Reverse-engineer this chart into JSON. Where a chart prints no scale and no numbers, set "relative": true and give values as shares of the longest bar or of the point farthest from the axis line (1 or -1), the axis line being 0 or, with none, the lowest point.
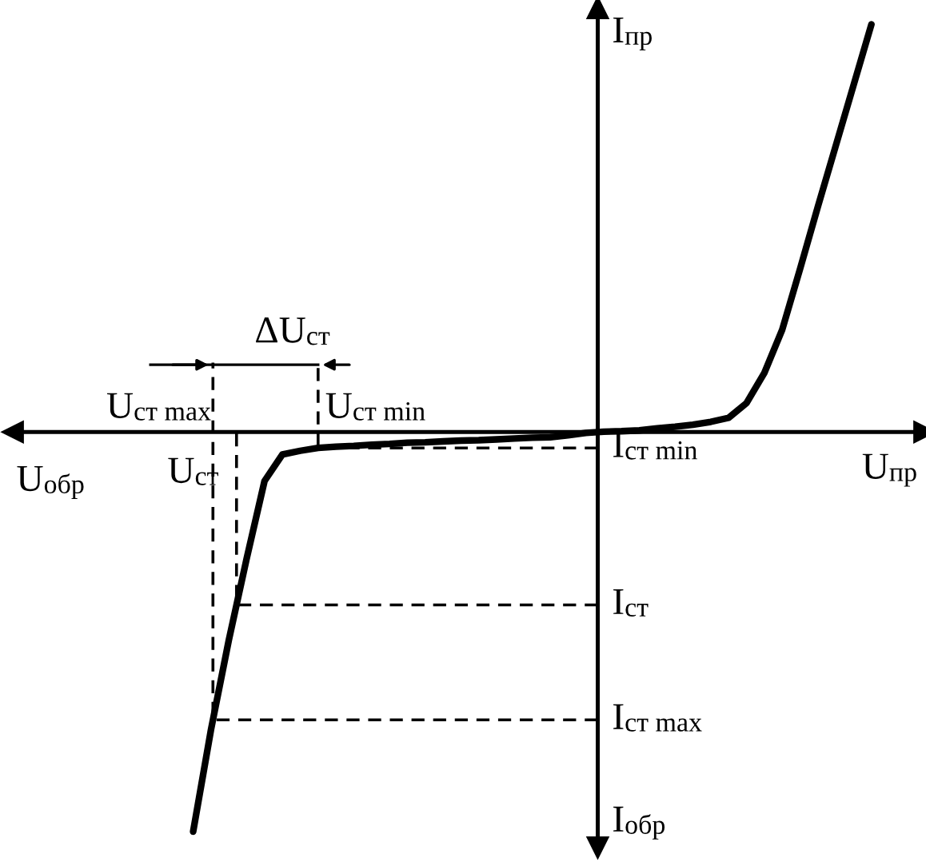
{
  "chart_data": {
    "type": "line",
    "relative": true,
    "xlabel": "U$_{пр}$",
    "ylabel": "I$_{пр}$",
    "categories": [
      null,
      null,
      null,
      null,
      null,
      null,
      null,
      null,
      null,
      null,
      null,
      null,
      null,
      null,
      null,
      null,
      null,
      null,
      null,
      null,
      null,
      null,
      null,
      null,
      null,
      null,
      null,
      null,
      null,
      null,
      null,
      null,
      null,
      null,
      null,
      null,
      null,
      null,
      null
    ],
    "series": [
      {
        "color": "#000000",
        "values": [
          -0.98,
          -0.73,
          -0.51,
          -0.31,
          -0.12,
          -0.055,
          -0.046,
          -0.039,
          -0.036,
          -0.034,
          -0.031,
          -0.029,
          -0.026,
          -0.025,
          -0.023,
          -0.021,
          -0.02,
          -0.018,
          -0.016,
          -0.014,
          -0.013,
          -0.008,
          -0.002,
          0.001,
          0.002,
          0.004,
          0.009,
          0.013,
          0.018,
          0.025,
          0.035,
          0.071,
          0.145,
          0.251,
          0.4,
          0.553,
          0.702,
          0.851,
          1.0
        ]
      }
    ],
    "ref_lines": [
      {
        "axis": "y",
        "value": -0.039,
        "label": "I$_{ст min}$",
        "line_style": "dashed",
        "color": "#000000"
      },
      {
        "axis": "y",
        "value": -0.424,
        "label": "I$_{ст}$",
        "line_style": "dashed",
        "color": "#000000"
      },
      {
        "axis": "y",
        "value": -0.706,
        "label": "I$_{ст max}$",
        "line_style": "dashed",
        "color": "#000000"
      }
    ],
    "annotations": [
      "U$_{обр}$",
      "U$_{ст max}$",
      "U$_{ст}$",
      "U$_{ст min}$",
      "ΔU$_{ст}$",
      "I$_{обр}$"
    ],
    "legend": false,
    "line_style": "solid",
    "marker": "none"
  }
}
